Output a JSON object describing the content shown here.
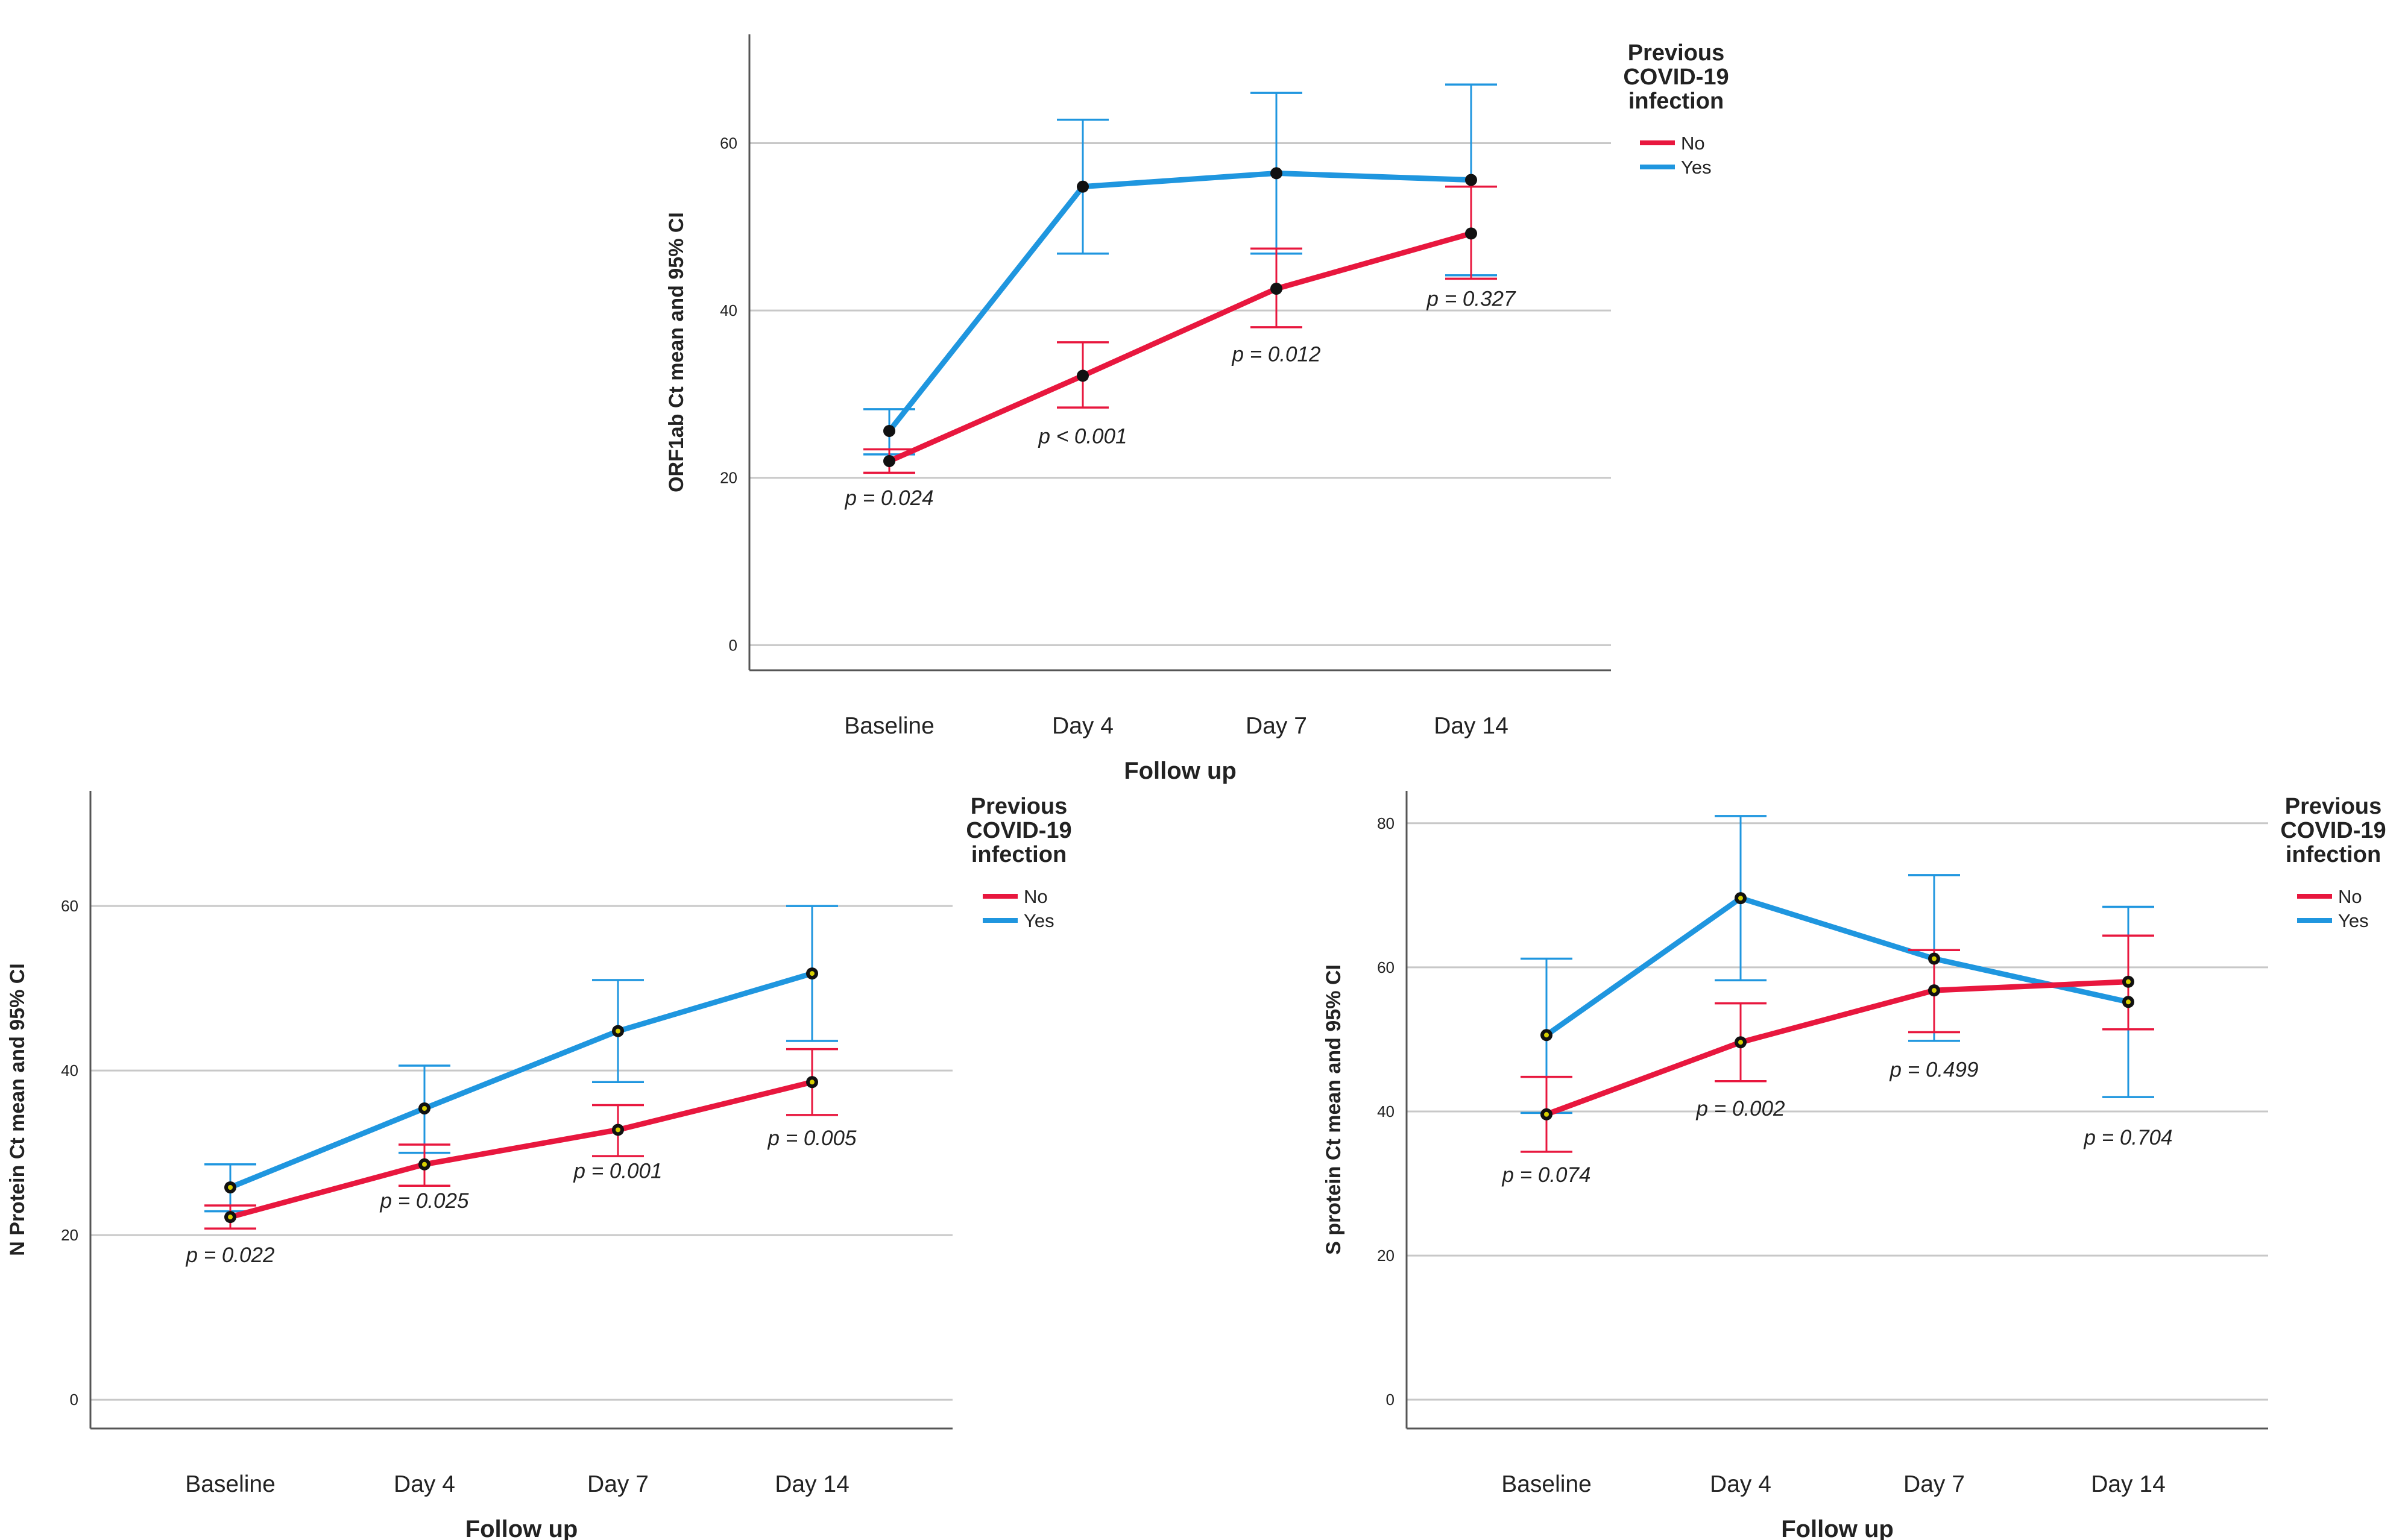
{
  "colors": {
    "no": "#e8173e",
    "yes": "#1f96df",
    "grid": "#c8c8c8",
    "axis": "#555555",
    "marker": "#111111"
  },
  "chart_data": [
    {
      "type": "line",
      "title": "",
      "xlabel": "Follow up",
      "ylabel": "ORF1ab Ct mean and 95% CI",
      "categories": [
        "Baseline",
        "Day 4",
        "Day 7",
        "Day 14"
      ],
      "ylim": [
        -3,
        73
      ],
      "yticks": [
        "0",
        "20",
        "40",
        "60"
      ],
      "legend": {
        "title_lines": [
          "Previous",
          "COVID-19",
          "infection"
        ],
        "placement": "top-right outside"
      },
      "series": [
        {
          "name": "No",
          "values": [
            22.0,
            32.2,
            42.6,
            49.2
          ],
          "ci_low": [
            20.6,
            28.4,
            38.0,
            43.8
          ],
          "ci_high": [
            23.4,
            36.2,
            47.4,
            54.8
          ]
        },
        {
          "name": "Yes",
          "values": [
            25.6,
            54.8,
            56.4,
            55.6
          ],
          "ci_low": [
            22.8,
            46.8,
            46.8,
            44.2
          ],
          "ci_high": [
            28.2,
            62.8,
            66.0,
            67.0
          ]
        }
      ],
      "annotations": [
        {
          "text": "p = 0.024",
          "x": 0,
          "y": 17.6
        },
        {
          "text": "p < 0.001",
          "x": 1,
          "y": 25.0
        },
        {
          "text": "p = 0.012",
          "x": 2,
          "y": 34.8
        },
        {
          "text": "p = 0.327",
          "x": 3,
          "y": 41.4
        }
      ]
    },
    {
      "type": "line",
      "title": "",
      "xlabel": "Follow up",
      "ylabel": "N Protein Ct mean and 95% CI",
      "categories": [
        "Baseline",
        "Day 4",
        "Day 7",
        "Day 14"
      ],
      "ylim": [
        -3.5,
        74
      ],
      "yticks": [
        "0",
        "20",
        "40",
        "60"
      ],
      "legend": {
        "title_lines": [
          "Previous",
          "COVID-19",
          "infection"
        ],
        "placement": "top-right outside"
      },
      "series": [
        {
          "name": "No",
          "values": [
            22.2,
            28.6,
            32.8,
            38.6
          ],
          "ci_low": [
            20.8,
            26.0,
            29.6,
            34.6
          ],
          "ci_high": [
            23.6,
            31.0,
            35.8,
            42.6
          ]
        },
        {
          "name": "Yes",
          "values": [
            25.8,
            35.4,
            44.8,
            51.8
          ],
          "ci_low": [
            22.9,
            30.0,
            38.6,
            43.6
          ],
          "ci_high": [
            28.6,
            40.6,
            51.0,
            60.0
          ]
        }
      ],
      "annotations": [
        {
          "text": "p = 0.022",
          "x": 0,
          "y": 17.6
        },
        {
          "text": "p = 0.025",
          "x": 1,
          "y": 24.2
        },
        {
          "text": "p = 0.001",
          "x": 2,
          "y": 27.8
        },
        {
          "text": "p = 0.005",
          "x": 3,
          "y": 31.8
        }
      ]
    },
    {
      "type": "line",
      "title": "",
      "xlabel": "Follow up",
      "ylabel": "S protein Ct mean and 95% CI",
      "categories": [
        "Baseline",
        "Day 4",
        "Day 7",
        "Day 14"
      ],
      "ylim": [
        -4,
        84.5
      ],
      "yticks": [
        "0",
        "20",
        "40",
        "60",
        "80"
      ],
      "legend": {
        "title_lines": [
          "Previous",
          "COVID-19",
          "infection"
        ],
        "placement": "top-right outside"
      },
      "series": [
        {
          "name": "No",
          "values": [
            39.6,
            49.6,
            56.8,
            58.0
          ],
          "ci_low": [
            34.4,
            44.2,
            51.0,
            51.4
          ],
          "ci_high": [
            44.8,
            55.0,
            62.4,
            64.4
          ]
        },
        {
          "name": "Yes",
          "values": [
            50.6,
            69.6,
            61.2,
            55.2
          ],
          "ci_low": [
            39.8,
            58.2,
            49.8,
            42.0
          ],
          "ci_high": [
            61.2,
            81.0,
            72.8,
            68.4
          ]
        }
      ],
      "annotations": [
        {
          "text": "p = 0.074",
          "x": 0,
          "y": 31.2
        },
        {
          "text": "p = 0.002",
          "x": 1,
          "y": 40.4
        },
        {
          "text": "p = 0.499",
          "x": 2,
          "y": 45.8
        },
        {
          "text": "p = 0.704",
          "x": 3,
          "y": 36.4
        }
      ]
    }
  ]
}
